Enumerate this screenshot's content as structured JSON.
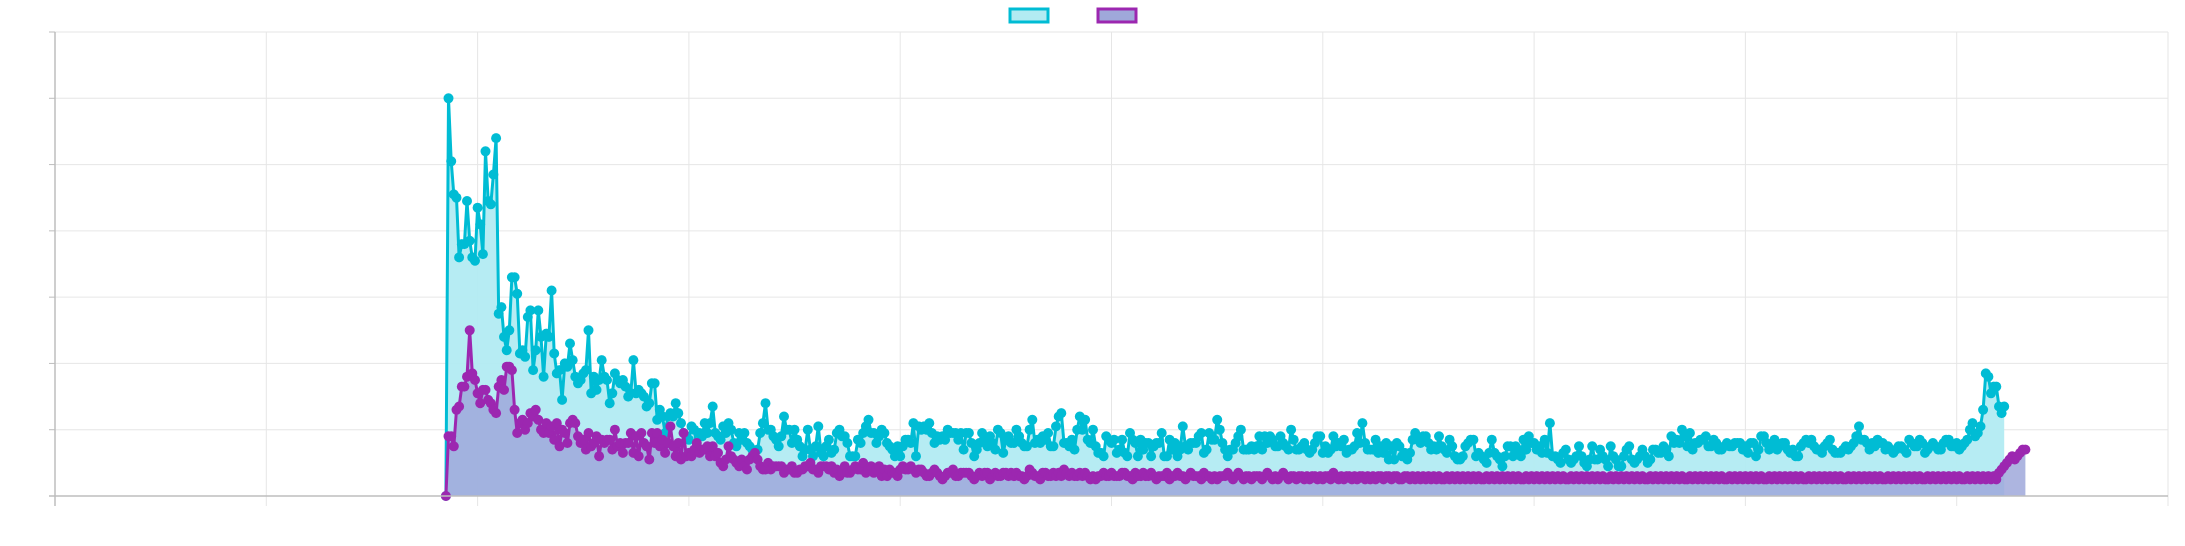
{
  "colors": {
    "series_a_line": "#00BCD4",
    "series_a_fill": "#B2EBF2",
    "series_b_line": "#9C27B0",
    "series_b_fill": "#9FA8DA",
    "grid": "#e6e6e6",
    "axis": "#bdbdbd"
  },
  "chart_data": {
    "type": "area",
    "title": "",
    "xlabel": "",
    "ylabel": "",
    "legend_position": "top-center",
    "grid": true,
    "xlim": [
      0,
      600
    ],
    "ylim": [
      0,
      700
    ],
    "x_start": 111,
    "series": [
      {
        "color": "#00BCD4",
        "fill": "#B2EBF2",
        "values": [
          0,
          600,
          505,
          455,
          450,
          360,
          380,
          380,
          445,
          385,
          360,
          355,
          435,
          410,
          365,
          520,
          445,
          440,
          485,
          540,
          275,
          285,
          240,
          220,
          250,
          330,
          330,
          305,
          215,
          220,
          210,
          270,
          280,
          190,
          220,
          280,
          240,
          180,
          245,
          240,
          310,
          215,
          185,
          190,
          145,
          200,
          195,
          230,
          205,
          180,
          170,
          175,
          185,
          190,
          250,
          155,
          180,
          160,
          175,
          205,
          180,
          175,
          140,
          155,
          185,
          175,
          170,
          175,
          165,
          150,
          155,
          205,
          155,
          160,
          155,
          150,
          135,
          140,
          170,
          170,
          115,
          130,
          120,
          95,
          120,
          125,
          120,
          140,
          125,
          110,
          95,
          90,
          85,
          105,
          100,
          75,
          95,
          90,
          110,
          95,
          110,
          135,
          95,
          90,
          85,
          105,
          95,
          110,
          100,
          80,
          75,
          95,
          85,
          95,
          80,
          75,
          70,
          60,
          70,
          95,
          110,
          140,
          100,
          100,
          90,
          85,
          75,
          90,
          120,
          100,
          100,
          80,
          100,
          85,
          75,
          60,
          70,
          100,
          70,
          60,
          75,
          105,
          65,
          60,
          75,
          85,
          65,
          70,
          95,
          100,
          90,
          90,
          80,
          60,
          60,
          60,
          85,
          80,
          95,
          105,
          115,
          95,
          95,
          80,
          90,
          100,
          95,
          80,
          75,
          70,
          60,
          75,
          60,
          75,
          85,
          85,
          80,
          110,
          60,
          105,
          100,
          105,
          100,
          110,
          95,
          80,
          90,
          85,
          90,
          85,
          100,
          95,
          95,
          95,
          85,
          95,
          70,
          95,
          95,
          80,
          60,
          70,
          80,
          95,
          85,
          75,
          90,
          80,
          70,
          100,
          95,
          65,
          85,
          90,
          80,
          80,
          100,
          90,
          80,
          75,
          75,
          100,
          115,
          80,
          85,
          80,
          90,
          85,
          95,
          75,
          75,
          105,
          120,
          125,
          80,
          80,
          75,
          85,
          70,
          100,
          120,
          100,
          115,
          85,
          80,
          100,
          75,
          65,
          65,
          60,
          90,
          85,
          80,
          85,
          65,
          70,
          85,
          65,
          60,
          95,
          85,
          80,
          60,
          85,
          70,
          80,
          80,
          60,
          75,
          80,
          80,
          95,
          60,
          60,
          85,
          70,
          80,
          60,
          70,
          105,
          75,
          70,
          80,
          80,
          80,
          90,
          95,
          65,
          70,
          95,
          85,
          85,
          115,
          100,
          80,
          70,
          60,
          70,
          70,
          80,
          90,
          100,
          70,
          70,
          70,
          75,
          70,
          75,
          90,
          70,
          90,
          80,
          90,
          85,
          75,
          75,
          90,
          80,
          75,
          70,
          100,
          85,
          70,
          70,
          75,
          80,
          70,
          65,
          70,
          80,
          90,
          90,
          65,
          75,
          65,
          70,
          90,
          75,
          80,
          75,
          85,
          65,
          70,
          70,
          75,
          95,
          80,
          110,
          80,
          70,
          70,
          70,
          85,
          65,
          75,
          65,
          80,
          55,
          75,
          55,
          80,
          75,
          60,
          65,
          55,
          65,
          85,
          95,
          85,
          80,
          90,
          90,
          80,
          70,
          75,
          70,
          90,
          75,
          70,
          65,
          85,
          75,
          60,
          55,
          55,
          60,
          75,
          80,
          85,
          85,
          60,
          65,
          60,
          55,
          50,
          65,
          85,
          65,
          60,
          55,
          45,
          60,
          75,
          75,
          60,
          75,
          70,
          60,
          85,
          70,
          90,
          80,
          80,
          70,
          75,
          65,
          85,
          65,
          110,
          60,
          60,
          55,
          50,
          65,
          70,
          55,
          50,
          55,
          60,
          75,
          60,
          50,
          45,
          55,
          75,
          55,
          55,
          70,
          60,
          55,
          45,
          75,
          60,
          55,
          45,
          45,
          60,
          70,
          75,
          55,
          50,
          55,
          60,
          70,
          60,
          50,
          55,
          70,
          70,
          65,
          65,
          75,
          70,
          60,
          90,
          80,
          85,
          80,
          100,
          90,
          75,
          95,
          70,
          80,
          80,
          85,
          85,
          90,
          75,
          75,
          85,
          80,
          70,
          70,
          75,
          80,
          75,
          75,
          80,
          80,
          80,
          70,
          75,
          65,
          80,
          80,
          60,
          70,
          90,
          90,
          80,
          70,
          75,
          85,
          70,
          75,
          80,
          80,
          70,
          65,
          70,
          60,
          60,
          75,
          80,
          85,
          80,
          85,
          75,
          70,
          70,
          65,
          75,
          80,
          85,
          70,
          65,
          65,
          65,
          70,
          75,
          70,
          75,
          80,
          90,
          105,
          85,
          85,
          80,
          70,
          80,
          75,
          85,
          80,
          80,
          70,
          75,
          70,
          65,
          70,
          75,
          75,
          70,
          65,
          85,
          80,
          75,
          75,
          85,
          80,
          65,
          70,
          75,
          80,
          75,
          70,
          70,
          80,
          85,
          85,
          75,
          75,
          80,
          70,
          75,
          80,
          85,
          100,
          110,
          90,
          95,
          105,
          130,
          185,
          180,
          155,
          165,
          165,
          135,
          125,
          135
        ]
      },
      {
        "color": "#9C27B0",
        "fill": "#9FA8DA",
        "values": [
          0,
          90,
          90,
          75,
          130,
          135,
          165,
          165,
          180,
          250,
          185,
          175,
          155,
          140,
          160,
          160,
          145,
          140,
          130,
          125,
          165,
          175,
          160,
          195,
          195,
          190,
          130,
          95,
          110,
          115,
          100,
          110,
          125,
          120,
          130,
          115,
          100,
          95,
          110,
          95,
          105,
          85,
          110,
          75,
          100,
          95,
          80,
          110,
          115,
          110,
          90,
          80,
          85,
          70,
          95,
          75,
          80,
          90,
          60,
          85,
          80,
          85,
          85,
          70,
          100,
          75,
          80,
          65,
          80,
          80,
          95,
          65,
          90,
          60,
          95,
          80,
          75,
          55,
          95,
          80,
          95,
          75,
          85,
          65,
          80,
          105,
          75,
          60,
          80,
          55,
          95,
          60,
          65,
          60,
          70,
          80,
          65,
          70,
          70,
          75,
          60,
          75,
          60,
          65,
          50,
          45,
          55,
          75,
          60,
          55,
          50,
          45,
          55,
          45,
          40,
          55,
          60,
          65,
          55,
          45,
          40,
          40,
          50,
          40,
          45,
          45,
          45,
          45,
          35,
          40,
          40,
          45,
          35,
          35,
          40,
          40,
          45,
          45,
          50,
          40,
          40,
          35,
          45,
          45,
          45,
          40,
          45,
          35,
          40,
          30,
          35,
          45,
          35,
          35,
          40,
          45,
          40,
          40,
          50,
          35,
          40,
          45,
          35,
          40,
          45,
          30,
          40,
          30,
          40,
          35,
          35,
          30,
          40,
          45,
          40,
          40,
          45,
          40,
          35,
          40,
          40,
          35,
          30,
          30,
          35,
          40,
          35,
          30,
          25,
          30,
          35,
          35,
          40,
          30,
          30,
          35,
          35,
          35,
          35,
          30,
          25,
          30,
          35,
          30,
          35,
          35,
          25,
          30,
          35,
          30,
          30,
          35,
          35,
          30,
          35,
          30,
          35,
          30,
          30,
          25,
          30,
          40,
          35,
          30,
          30,
          25,
          35,
          35,
          30,
          30,
          35,
          30,
          35,
          30,
          40,
          35,
          30,
          35,
          30,
          30,
          35,
          30,
          35,
          30,
          25,
          30,
          25,
          30,
          30,
          35,
          30,
          30,
          35,
          30,
          30,
          30,
          35,
          35,
          30,
          30,
          25,
          35,
          30,
          30,
          35,
          30,
          30,
          35,
          30,
          25,
          30,
          30,
          30,
          35,
          25,
          30,
          30,
          35,
          30,
          30,
          25,
          30,
          35,
          30,
          30,
          30,
          25,
          35,
          30,
          30,
          25,
          30,
          25,
          30,
          30,
          30,
          35,
          30,
          25,
          30,
          35,
          30,
          25,
          30,
          30,
          25,
          30,
          30,
          30,
          25,
          30,
          35,
          30,
          25,
          30,
          25,
          30,
          35,
          30,
          25,
          30,
          30,
          25,
          30,
          30,
          25,
          30,
          25,
          30,
          30,
          25,
          30,
          25,
          30,
          30,
          25,
          35,
          30,
          25,
          30,
          25,
          30,
          30,
          25,
          30,
          25,
          30,
          30,
          25,
          30,
          25,
          30,
          25,
          30,
          30,
          25,
          30,
          30,
          25,
          30,
          30,
          25,
          25,
          30,
          30,
          25,
          30,
          25,
          30,
          25,
          30,
          25,
          30,
          25,
          30,
          25,
          30,
          25,
          25,
          30,
          25,
          30,
          25,
          30,
          25,
          30,
          25,
          30,
          25,
          30,
          25,
          30,
          25,
          25,
          30,
          25,
          30,
          25,
          30,
          25,
          30,
          25,
          30,
          25,
          30,
          25,
          30,
          25,
          25,
          30,
          25,
          30,
          25,
          30,
          25,
          30,
          25,
          30,
          25,
          30,
          25,
          30,
          25,
          30,
          25,
          25,
          30,
          25,
          30,
          25,
          30,
          25,
          30,
          25,
          30,
          25,
          30,
          25,
          30,
          25,
          25,
          30,
          25,
          30,
          25,
          30,
          25,
          30,
          25,
          30,
          25,
          30,
          25,
          30,
          25,
          25,
          30,
          25,
          30,
          25,
          30,
          25,
          30,
          25,
          30,
          25,
          30,
          25,
          30,
          25,
          25,
          30,
          25,
          30,
          25,
          30,
          25,
          30,
          25,
          30,
          25,
          30,
          25,
          30,
          25,
          25,
          30,
          25,
          30,
          25,
          30,
          25,
          30,
          25,
          30,
          25,
          30,
          25,
          30,
          25,
          25,
          30,
          25,
          30,
          25,
          30,
          25,
          30,
          25,
          30,
          25,
          30,
          25,
          30,
          25,
          25,
          30,
          25,
          30,
          25,
          30,
          25,
          30,
          25,
          30,
          25,
          30,
          25,
          30,
          25,
          25,
          30,
          25,
          30,
          25,
          30,
          25,
          30,
          25,
          30,
          25,
          30,
          25,
          30,
          25,
          25,
          30,
          25,
          30,
          25,
          30,
          25,
          30,
          25,
          30,
          25,
          30,
          25,
          30,
          25,
          25,
          30,
          25,
          30,
          25,
          30,
          25,
          30,
          25,
          30,
          25,
          30,
          25,
          30,
          25,
          25,
          30,
          25,
          30,
          25,
          30,
          25,
          30,
          25,
          30,
          25,
          30,
          25,
          35,
          40,
          45,
          50,
          55,
          60,
          55,
          60,
          65,
          70,
          70
        ]
      }
    ]
  }
}
